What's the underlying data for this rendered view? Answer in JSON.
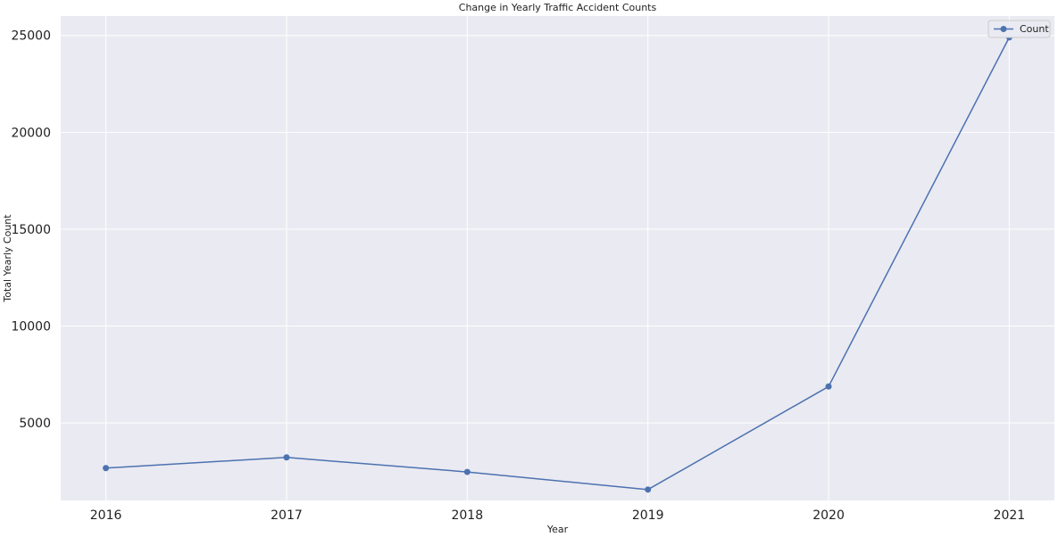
{
  "chart_data": {
    "type": "line",
    "title": "Change in Yearly Traffic Accident Counts",
    "xlabel": "Year",
    "ylabel": "Total Yearly Count",
    "x": [
      2016,
      2017,
      2018,
      2019,
      2020,
      2021
    ],
    "series": [
      {
        "name": "Count",
        "values": [
          2670,
          3220,
          2470,
          1560,
          6880,
          24900
        ],
        "color": "#4c72b0"
      }
    ],
    "xlim": [
      2015.75,
      2021.25
    ],
    "ylim": [
      1000,
      26000
    ],
    "yticks": [
      5000,
      10000,
      15000,
      20000,
      25000
    ],
    "xticks": [
      2016,
      2017,
      2018,
      2019,
      2020,
      2021
    ],
    "grid": true,
    "legend_position": "top-right",
    "colors": {
      "plot_background": "#eaeaf2",
      "grid": "#ffffff",
      "line": "#4c72b0"
    }
  }
}
